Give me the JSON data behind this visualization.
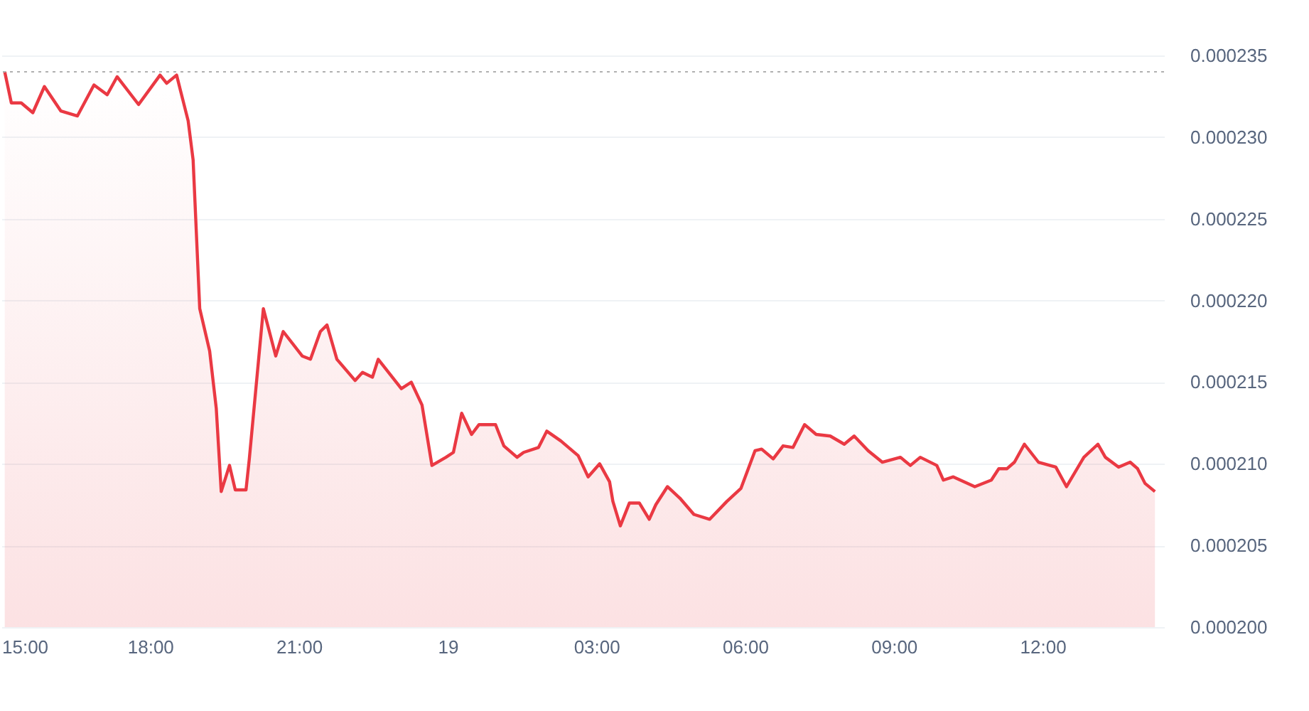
{
  "chart_data": {
    "type": "area",
    "color": "#ea3943",
    "x": [
      "--01-18T15:04",
      "--01-18T15:12",
      "--01-18T15:24",
      "--01-18T15:38",
      "--01-18T15:52",
      "--01-18T16:12",
      "--01-18T16:32",
      "--01-18T16:52",
      "--01-18T17:08",
      "--01-18T17:20",
      "--01-18T17:46",
      "--01-18T18:12",
      "--01-18T18:20",
      "--01-18T18:32",
      "--01-18T18:46",
      "--01-18T18:52",
      "--01-18T19:00",
      "--01-18T19:12",
      "--01-18T19:20",
      "--01-18T19:26",
      "--01-18T19:36",
      "--01-18T19:43",
      "--01-18T19:56",
      "--01-18T20:00",
      "--01-18T20:17",
      "--01-18T20:32",
      "--01-18T20:41",
      "--01-18T21:04",
      "--01-18T21:14",
      "--01-18T21:26",
      "--01-18T21:34",
      "--01-18T21:46",
      "--01-18T22:08",
      "--01-18T22:17",
      "--01-18T22:29",
      "--01-18T22:36",
      "--01-18T23:04",
      "--01-18T23:16",
      "--01-18T23:29",
      "--01-18T23:41",
      "--01-18T23:58",
      "--01-19T00:07",
      "--01-19T00:17",
      "--01-19T00:29",
      "--01-19T00:38",
      "--01-19T00:58",
      "--01-19T01:08",
      "--01-19T01:24",
      "--01-19T01:32",
      "--01-19T01:50",
      "--01-19T02:00",
      "--01-19T02:17",
      "--01-19T02:38",
      "--01-19T02:50",
      "--01-19T03:04",
      "--01-19T03:16",
      "--01-19T03:20",
      "--01-19T03:29",
      "--01-19T03:40",
      "--01-19T03:52",
      "--01-19T04:04",
      "--01-19T04:12",
      "--01-19T04:26",
      "--01-19T04:41",
      "--01-19T04:58",
      "--01-19T05:17",
      "--01-19T05:38",
      "--01-19T05:55",
      "--01-19T06:12",
      "--01-19T06:20",
      "--01-19T06:34",
      "--01-19T06:46",
      "--01-19T06:58",
      "--01-19T07:12",
      "--01-19T07:26",
      "--01-19T07:43",
      "--01-19T08:00",
      "--01-19T08:12",
      "--01-19T08:29",
      "--01-19T08:46",
      "--01-19T09:08",
      "--01-19T09:20",
      "--01-19T09:32",
      "--01-19T09:52",
      "--01-19T10:00",
      "--01-19T10:12",
      "--01-19T10:38",
      "--01-19T10:58",
      "--01-19T11:07",
      "--01-19T11:17",
      "--01-19T11:26",
      "--01-19T11:38",
      "--01-19T11:55",
      "--01-19T12:16",
      "--01-19T12:29",
      "--01-19T12:50",
      "--01-19T13:07",
      "--01-19T13:16",
      "--01-19T13:32",
      "--01-19T13:46",
      "--01-19T13:55",
      "--01-19T14:04",
      "--01-19T14:16"
    ],
    "values": [
      0.000234,
      0.0002321,
      0.0002321,
      0.0002315,
      0.0002331,
      0.0002316,
      0.0002313,
      0.0002332,
      0.0002326,
      0.0002337,
      0.000232,
      0.0002338,
      0.0002333,
      0.0002338,
      0.000231,
      0.0002286,
      0.0002195,
      0.0002169,
      0.0002134,
      0.0002083,
      0.0002099,
      0.0002084,
      0.0002084,
      0.0002103,
      0.0002195,
      0.0002166,
      0.0002181,
      0.0002166,
      0.0002164,
      0.0002181,
      0.0002185,
      0.0002164,
      0.0002151,
      0.0002156,
      0.0002153,
      0.0002164,
      0.0002146,
      0.000215,
      0.0002136,
      0.0002099,
      0.0002104,
      0.0002107,
      0.0002131,
      0.0002118,
      0.0002124,
      0.0002124,
      0.0002111,
      0.0002104,
      0.0002107,
      0.000211,
      0.000212,
      0.0002114,
      0.0002105,
      0.0002092,
      0.00021,
      0.0002089,
      0.0002077,
      0.0002062,
      0.0002076,
      0.0002076,
      0.0002066,
      0.0002075,
      0.0002086,
      0.0002079,
      0.0002069,
      0.0002066,
      0.0002077,
      0.0002085,
      0.0002108,
      0.0002109,
      0.0002103,
      0.0002111,
      0.000211,
      0.0002124,
      0.0002118,
      0.0002117,
      0.0002112,
      0.0002117,
      0.0002108,
      0.0002101,
      0.0002104,
      0.0002099,
      0.0002104,
      0.0002099,
      0.000209,
      0.0002092,
      0.0002086,
      0.000209,
      0.0002097,
      0.0002097,
      0.0002101,
      0.0002112,
      0.0002101,
      0.0002098,
      0.0002086,
      0.0002104,
      0.0002112,
      0.0002104,
      0.0002098,
      0.0002101,
      0.0002097,
      0.0002088,
      0.0002083
    ],
    "xlim": [
      "--01-18T15:00",
      "--01-19T14:27"
    ],
    "ylim": [
      0.0002,
      0.0002384
    ],
    "xticks": [
      {
        "value": "--01-18T15:00",
        "label": "15:00"
      },
      {
        "value": "--01-18T18:00",
        "label": "18:00"
      },
      {
        "value": "--01-18T21:00",
        "label": "21:00"
      },
      {
        "value": "--01-19T00:00",
        "label": "19"
      },
      {
        "value": "--01-19T03:00",
        "label": "03:00"
      },
      {
        "value": "--01-19T06:00",
        "label": "06:00"
      },
      {
        "value": "--01-19T09:00",
        "label": "09:00"
      },
      {
        "value": "--01-19T12:00",
        "label": "12:00"
      }
    ],
    "yticks": [
      {
        "value": 0.0002,
        "label": "0.000200"
      },
      0.000205,
      {
        "value": 0.00021,
        "label": "0.000210"
      },
      0.000215,
      {
        "value": 0.00022,
        "label": "0.000220"
      },
      0.000225,
      {
        "value": 0.00023,
        "label": "0.000230"
      },
      0.000235
    ],
    "ref_lines": [
      {
        "axis": "y",
        "value": 0.000234,
        "color": "#b0b0b0",
        "line_style": "dotted"
      }
    ],
    "grid": "y"
  }
}
